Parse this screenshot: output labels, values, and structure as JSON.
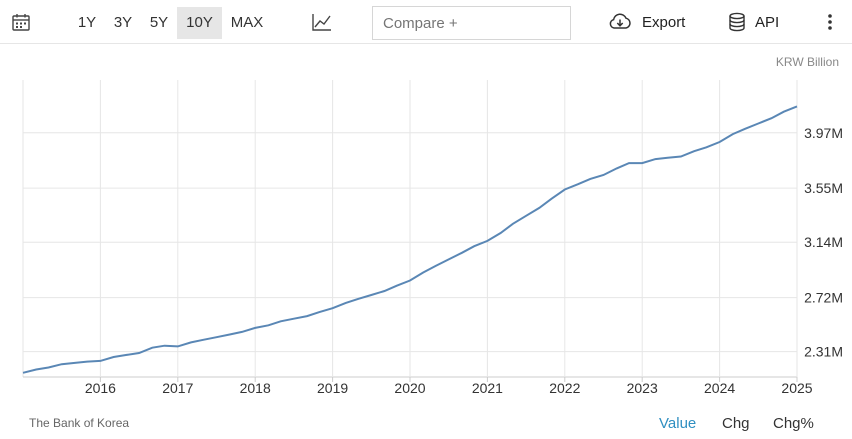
{
  "toolbar": {
    "calendar_icon": "calendar-icon",
    "ranges": [
      "1Y",
      "3Y",
      "5Y",
      "10Y",
      "MAX"
    ],
    "active_range": "10Y",
    "chart_type_icon": "line-chart-icon",
    "compare_placeholder": "Compare +",
    "export_label": "Export",
    "api_label": "API",
    "menu_icon": "more-vertical-icon"
  },
  "unit_label": "KRW Billion",
  "source": "The Bank of Korea",
  "footer_tabs": [
    "Value",
    "Chg",
    "Chg%"
  ],
  "active_tab": "Value",
  "colors": {
    "line": "#5a87b5",
    "grid": "#e6e6e6",
    "active_tab": "#2f8fc1",
    "active_range_bg": "#e6e6e6"
  },
  "chart_data": {
    "type": "line",
    "x_tick_labels": [
      "2016",
      "2017",
      "2018",
      "2019",
      "2020",
      "2021",
      "2022",
      "2023",
      "2024",
      "2025"
    ],
    "y_tick_labels": [
      "2.31M",
      "2.72M",
      "3.14M",
      "3.55M",
      "3.97M"
    ],
    "y_ticks": [
      2310000,
      2720000,
      3140000,
      3550000,
      3970000
    ],
    "ylim": [
      2118000,
      4370000
    ],
    "xlim": [
      2015.0,
      2025.0
    ],
    "grid": true,
    "series": [
      {
        "points": [
          [
            2015.0,
            2150000
          ],
          [
            2015.17,
            2175000
          ],
          [
            2015.33,
            2190000
          ],
          [
            2015.5,
            2215000
          ],
          [
            2015.67,
            2225000
          ],
          [
            2015.83,
            2235000
          ],
          [
            2016.0,
            2240000
          ],
          [
            2016.17,
            2270000
          ],
          [
            2016.33,
            2285000
          ],
          [
            2016.5,
            2300000
          ],
          [
            2016.67,
            2340000
          ],
          [
            2016.83,
            2355000
          ],
          [
            2017.0,
            2350000
          ],
          [
            2017.17,
            2380000
          ],
          [
            2017.33,
            2400000
          ],
          [
            2017.5,
            2420000
          ],
          [
            2017.67,
            2440000
          ],
          [
            2017.83,
            2460000
          ],
          [
            2018.0,
            2490000
          ],
          [
            2018.17,
            2510000
          ],
          [
            2018.33,
            2540000
          ],
          [
            2018.5,
            2560000
          ],
          [
            2018.67,
            2580000
          ],
          [
            2018.83,
            2610000
          ],
          [
            2019.0,
            2640000
          ],
          [
            2019.17,
            2680000
          ],
          [
            2019.33,
            2710000
          ],
          [
            2019.5,
            2740000
          ],
          [
            2019.67,
            2770000
          ],
          [
            2019.83,
            2810000
          ],
          [
            2020.0,
            2850000
          ],
          [
            2020.17,
            2910000
          ],
          [
            2020.33,
            2960000
          ],
          [
            2020.5,
            3010000
          ],
          [
            2020.67,
            3060000
          ],
          [
            2020.83,
            3110000
          ],
          [
            2021.0,
            3150000
          ],
          [
            2021.17,
            3210000
          ],
          [
            2021.33,
            3280000
          ],
          [
            2021.5,
            3340000
          ],
          [
            2021.67,
            3400000
          ],
          [
            2021.83,
            3470000
          ],
          [
            2022.0,
            3540000
          ],
          [
            2022.17,
            3580000
          ],
          [
            2022.33,
            3620000
          ],
          [
            2022.5,
            3650000
          ],
          [
            2022.67,
            3700000
          ],
          [
            2022.83,
            3740000
          ],
          [
            2023.0,
            3740000
          ],
          [
            2023.17,
            3770000
          ],
          [
            2023.33,
            3780000
          ],
          [
            2023.5,
            3790000
          ],
          [
            2023.67,
            3830000
          ],
          [
            2023.83,
            3860000
          ],
          [
            2024.0,
            3900000
          ],
          [
            2024.17,
            3960000
          ],
          [
            2024.33,
            4000000
          ],
          [
            2024.5,
            4040000
          ],
          [
            2024.67,
            4080000
          ],
          [
            2024.83,
            4130000
          ],
          [
            2025.0,
            4170000
          ]
        ]
      }
    ]
  }
}
